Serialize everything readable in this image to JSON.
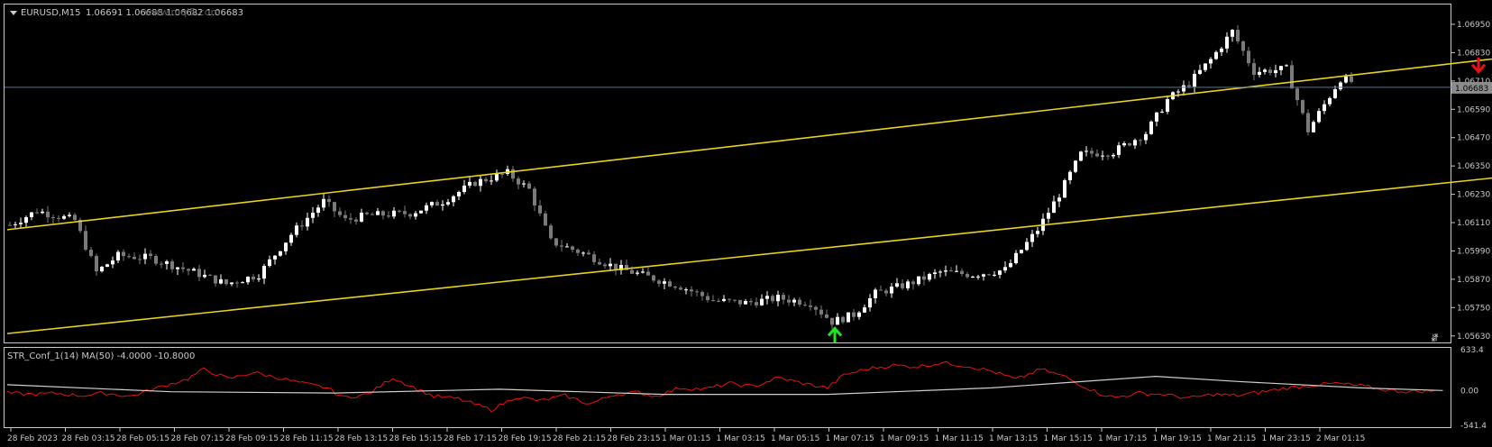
{
  "window": {
    "symbol_title": "EURUSD,M15",
    "ohlc_text": "1.06691 1.06688 1.06682 1.06683",
    "watermark": "www.mql5.com"
  },
  "colors": {
    "background": "#000000",
    "frame": "#c8c8c8",
    "text": "#c8c8c8",
    "bull_candle": "#ffffff",
    "bear_candle": "#7a7a7a",
    "channel": "#e8d21a",
    "bid_line": "#5f7387",
    "price_tag_bg": "#8c8c8c",
    "buy_arrow": "#1ee81e",
    "sell_arrow": "#e8101c",
    "indicator_line": "#e81010",
    "indicator_ma": "#cfcfcf"
  },
  "icons": {
    "menu": "triangle-down-icon",
    "buy_signal": "arrow-up-icon",
    "sell_signal": "arrow-down-icon",
    "autoscroll": "shift-icon"
  },
  "price_axis": {
    "labels": [
      "1.06950",
      "1.06830",
      "1.06710",
      "1.06590",
      "1.06470",
      "1.06350",
      "1.06230",
      "1.06110",
      "1.05990",
      "1.05870",
      "1.05750",
      "1.05630"
    ],
    "current_price": "1.06683"
  },
  "time_axis": {
    "labels": [
      "28 Feb 2023",
      "28 Feb 03:15",
      "28 Feb 05:15",
      "28 Feb 07:15",
      "28 Feb 09:15",
      "28 Feb 11:15",
      "28 Feb 13:15",
      "28 Feb 15:15",
      "28 Feb 17:15",
      "28 Feb 19:15",
      "28 Feb 21:15",
      "28 Feb 23:15",
      "1 Mar 01:15",
      "1 Mar 03:15",
      "1 Mar 05:15",
      "1 Mar 07:15",
      "1 Mar 09:15",
      "1 Mar 11:15",
      "1 Mar 13:15",
      "1 Mar 15:15",
      "1 Mar 17:15",
      "1 Mar 19:15",
      "1 Mar 21:15",
      "1 Mar 23:15",
      "2 Mar 01:15"
    ]
  },
  "indicator": {
    "title": "STR_Conf_1(14) MA(50) -4.0000 -10.8000",
    "axis_labels": [
      "633.4",
      "0.00",
      "-541.4"
    ],
    "ylim": [
      -541.4,
      633.4
    ]
  },
  "chart_data": {
    "type": "candlestick",
    "ylim": [
      1.0561,
      1.0703
    ],
    "bars": 248,
    "close_anchors": [
      [
        0,
        1.061
      ],
      [
        5,
        1.0616
      ],
      [
        12,
        1.0612
      ],
      [
        16,
        1.059
      ],
      [
        20,
        1.0597
      ],
      [
        26,
        1.0596
      ],
      [
        34,
        1.059
      ],
      [
        40,
        1.0585
      ],
      [
        46,
        1.0589
      ],
      [
        52,
        1.0606
      ],
      [
        58,
        1.062
      ],
      [
        62,
        1.0612
      ],
      [
        66,
        1.0614
      ],
      [
        74,
        1.0615
      ],
      [
        80,
        1.062
      ],
      [
        86,
        1.0628
      ],
      [
        92,
        1.0632
      ],
      [
        96,
        1.0625
      ],
      [
        100,
        1.0603
      ],
      [
        106,
        1.0598
      ],
      [
        112,
        1.0592
      ],
      [
        118,
        1.0588
      ],
      [
        124,
        1.0584
      ],
      [
        130,
        1.0578
      ],
      [
        136,
        1.0577
      ],
      [
        142,
        1.0579
      ],
      [
        148,
        1.0577
      ],
      [
        152,
        1.0569
      ],
      [
        156,
        1.0572
      ],
      [
        160,
        1.0581
      ],
      [
        166,
        1.0585
      ],
      [
        172,
        1.059
      ],
      [
        178,
        1.0589
      ],
      [
        184,
        1.0591
      ],
      [
        190,
        1.0608
      ],
      [
        194,
        1.0623
      ],
      [
        198,
        1.064
      ],
      [
        204,
        1.0641
      ],
      [
        210,
        1.0649
      ],
      [
        214,
        1.0663
      ],
      [
        218,
        1.067
      ],
      [
        222,
        1.068
      ],
      [
        226,
        1.0692
      ],
      [
        230,
        1.0675
      ],
      [
        236,
        1.0676
      ],
      [
        240,
        1.065
      ],
      [
        246,
        1.0672
      ],
      [
        252,
        1.0668
      ],
      [
        256,
        1.0656
      ],
      [
        260,
        1.0648
      ],
      [
        264,
        1.066
      ],
      [
        270,
        1.0664
      ],
      [
        276,
        1.0668
      ],
      [
        282,
        1.0668
      ]
    ],
    "channel": {
      "upper": [
        [
          0,
          1.0608
        ],
        [
          300,
          1.0687
        ]
      ],
      "lower": [
        [
          0,
          1.0564
        ],
        [
          300,
          1.0636
        ]
      ]
    },
    "signals": [
      {
        "type": "buy",
        "bar": 153,
        "price": 1.057
      },
      {
        "type": "sell",
        "bar": 272,
        "price": 1.06695
      }
    ],
    "indicator_series": {
      "str": [
        [
          0,
          -40
        ],
        [
          6,
          -60
        ],
        [
          12,
          -45
        ],
        [
          18,
          -80
        ],
        [
          24,
          -40
        ],
        [
          30,
          -90
        ],
        [
          36,
          30
        ],
        [
          44,
          180
        ],
        [
          48,
          330
        ],
        [
          54,
          180
        ],
        [
          60,
          280
        ],
        [
          66,
          200
        ],
        [
          72,
          110
        ],
        [
          78,
          40
        ],
        [
          82,
          -110
        ],
        [
          88,
          -60
        ],
        [
          94,
          200
        ],
        [
          98,
          80
        ],
        [
          104,
          -90
        ],
        [
          110,
          -130
        ],
        [
          118,
          -300
        ],
        [
          124,
          -100
        ],
        [
          130,
          -160
        ],
        [
          136,
          -80
        ],
        [
          142,
          -210
        ],
        [
          148,
          -60
        ],
        [
          154,
          -30
        ],
        [
          158,
          -90
        ],
        [
          164,
          40
        ],
        [
          170,
          20
        ],
        [
          176,
          110
        ],
        [
          182,
          60
        ],
        [
          188,
          200
        ],
        [
          194,
          110
        ],
        [
          200,
          40
        ],
        [
          204,
          240
        ],
        [
          210,
          340
        ],
        [
          216,
          390
        ],
        [
          222,
          370
        ],
        [
          228,
          430
        ],
        [
          234,
          380
        ],
        [
          240,
          300
        ],
        [
          246,
          170
        ],
        [
          252,
          330
        ],
        [
          258,
          210
        ],
        [
          262,
          80
        ],
        [
          266,
          -40
        ],
        [
          270,
          -110
        ],
        [
          276,
          -40
        ],
        [
          282,
          -60
        ],
        [
          288,
          -120
        ],
        [
          294,
          -60
        ],
        [
          300,
          -80
        ],
        [
          306,
          -20
        ],
        [
          312,
          40
        ],
        [
          318,
          80
        ],
        [
          324,
          110
        ],
        [
          330,
          70
        ],
        [
          336,
          10
        ],
        [
          342,
          -20
        ],
        [
          348,
          0
        ]
      ],
      "ma": [
        [
          0,
          90
        ],
        [
          40,
          -20
        ],
        [
          80,
          -40
        ],
        [
          120,
          20
        ],
        [
          160,
          -60
        ],
        [
          200,
          -60
        ],
        [
          240,
          40
        ],
        [
          280,
          220
        ],
        [
          300,
          140
        ],
        [
          330,
          40
        ],
        [
          350,
          0
        ]
      ]
    }
  }
}
